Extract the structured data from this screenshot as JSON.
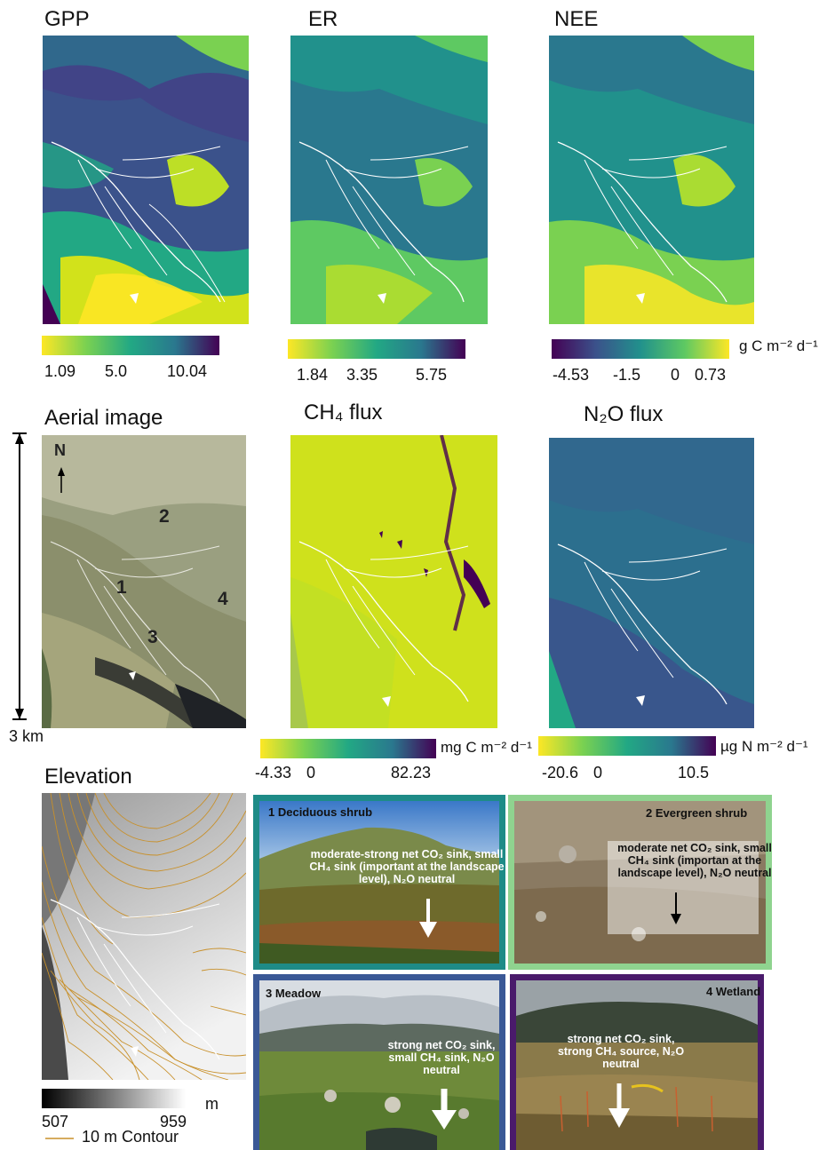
{
  "maps": {
    "gpp": {
      "title": "GPP",
      "ticks": [
        "1.09",
        "5.0",
        "10.04"
      ]
    },
    "er": {
      "title": "ER",
      "ticks": [
        "1.84",
        "3.35",
        "5.75"
      ]
    },
    "nee": {
      "title": "NEE",
      "ticks": [
        "-4.53",
        "-1.5",
        "0",
        "0.73"
      ],
      "unit": "g C m⁻² d⁻¹"
    },
    "aerial": {
      "title": "Aerial image",
      "north": "N",
      "scale": "3 km",
      "sites": [
        "1",
        "2",
        "3",
        "4"
      ]
    },
    "ch4": {
      "title": "CH₄ flux",
      "ticks": [
        "-4.33",
        "0",
        "82.23"
      ],
      "unit": "mg C m⁻² d⁻¹"
    },
    "n2o": {
      "title": "N₂O flux",
      "ticks": [
        "-20.6",
        "0",
        "10.5"
      ],
      "unit": "µg N m⁻² d⁻¹"
    },
    "elevation": {
      "title": "Elevation",
      "ticks": [
        "507",
        "959"
      ],
      "unit": "m",
      "contour": "10 m Contour"
    }
  },
  "photos": [
    {
      "label": "1 Deciduous shrub",
      "lines": [
        "moderate-strong net CO₂ sink,",
        "small CH₄ sink (important",
        "at the landscape level),",
        "N₂O neutral"
      ],
      "frame_color": "#1e8b87"
    },
    {
      "label": "2 Evergreen shrub",
      "lines": [
        "moderate net CO₂ sink,",
        "small CH₄ sink (importan",
        "at the landscape level),",
        "N₂O neutral"
      ],
      "frame_color": "#8fd38f"
    },
    {
      "label": "3 Meadow",
      "lines": [
        "strong net CO₂ sink,",
        "small CH₄ sink,",
        "N₂O neutral"
      ],
      "frame_color": "#3a5896"
    },
    {
      "label": "4 Wetland",
      "lines": [
        "strong net CO₂ sink,",
        "strong CH₄ source,",
        "N₂O neutral"
      ],
      "frame_color": "#4a1a6b"
    }
  ],
  "colors": {
    "viridis_yellow": "#fde725",
    "viridis_green": "#21a685",
    "viridis_teal": "#2a788e",
    "viridis_purple": "#440154",
    "stream": "#ffffff",
    "contour": "#c8902a"
  }
}
